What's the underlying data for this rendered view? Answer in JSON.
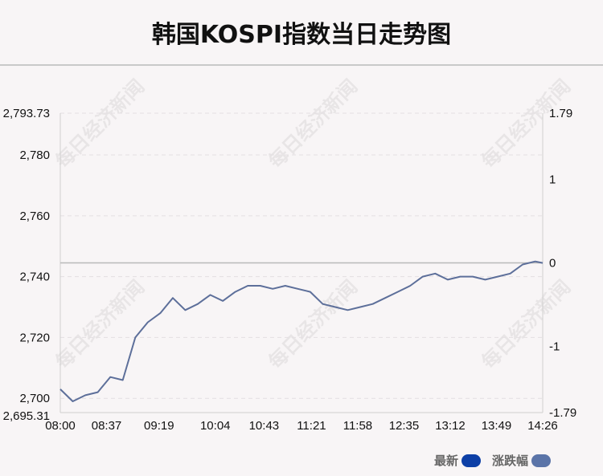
{
  "chart_data": {
    "type": "line",
    "title": "韩国KOSPI指数当日走势图",
    "x_ticks": [
      "08:00",
      "08:37",
      "09:19",
      "10:04",
      "10:43",
      "11:21",
      "11:58",
      "12:35",
      "13:12",
      "13:49",
      "14:26"
    ],
    "y_left": {
      "ticks": [
        "2,793.73",
        "2,780",
        "2,760",
        "2,740",
        "2,720",
        "2,700",
        "2,695.31"
      ],
      "min": 2695.31,
      "max": 2793.73
    },
    "y_right": {
      "ticks": [
        "1.79",
        "1",
        "0",
        "-1",
        "-1.79"
      ],
      "min": -1.79,
      "max": 1.79
    },
    "prev_close": 2744.52,
    "series": [
      {
        "name": "最新",
        "x": [
          "08:00",
          "08:10",
          "08:20",
          "08:30",
          "08:40",
          "08:50",
          "09:00",
          "09:10",
          "09:20",
          "09:30",
          "09:40",
          "09:50",
          "10:00",
          "10:10",
          "10:20",
          "10:30",
          "10:40",
          "10:50",
          "11:00",
          "11:10",
          "11:20",
          "11:30",
          "11:40",
          "11:50",
          "12:00",
          "12:10",
          "12:20",
          "12:30",
          "12:40",
          "12:50",
          "13:00",
          "13:10",
          "13:20",
          "13:30",
          "13:40",
          "13:50",
          "14:00",
          "14:10",
          "14:20",
          "14:26"
        ],
        "values": [
          2703,
          2699,
          2701,
          2702,
          2707,
          2706,
          2720,
          2725,
          2728,
          2733,
          2729,
          2731,
          2734,
          2732,
          2735,
          2737,
          2737,
          2736,
          2737,
          2736,
          2735,
          2731,
          2730,
          2729,
          2730,
          2731,
          2733,
          2735,
          2737,
          2740,
          2741,
          2739,
          2740,
          2740,
          2739,
          2740,
          2741,
          2744,
          2745,
          2744.5
        ]
      }
    ],
    "legend": [
      {
        "label": "最新",
        "color": "#0d3fa6"
      },
      {
        "label": "涨跌幅",
        "color": "#5b74a8"
      }
    ],
    "line_color": "#5d6f9a",
    "grid": true,
    "legend_position": "bottom-right"
  },
  "watermark": "每日经济新闻"
}
